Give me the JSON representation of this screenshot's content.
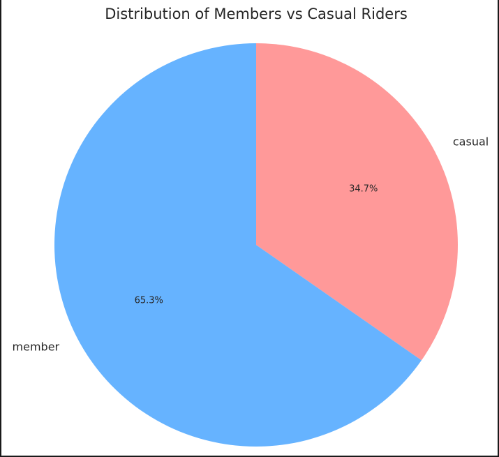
{
  "chart_data": {
    "type": "pie",
    "title": "Distribution of Members vs Casual Riders",
    "categories": [
      "casual",
      "member"
    ],
    "values": [
      34.7,
      65.3
    ],
    "percent_labels": [
      "34.7%",
      "65.3%"
    ],
    "colors": [
      "#ff9999",
      "#66b3ff"
    ],
    "start_angle": "top (12 o'clock), clockwise",
    "legend": "none"
  }
}
